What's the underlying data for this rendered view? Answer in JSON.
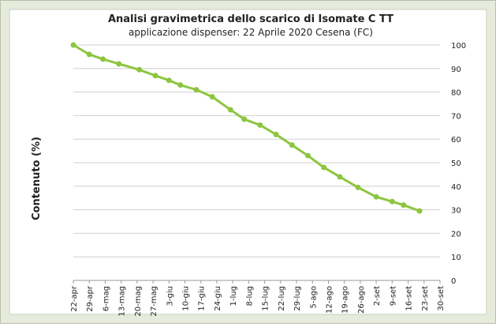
{
  "chart_data": {
    "type": "line",
    "title": "Analisi gravimetrica dello scarico di Isomate C TT",
    "subtitle": "applicazione dispenser: 22 Aprile 2020 Cesena (FC)",
    "y_label": "Contenuto (%)",
    "x": [
      0,
      7,
      13,
      20,
      29,
      36,
      42,
      47,
      54,
      61,
      69,
      75,
      82,
      89,
      96,
      103,
      110,
      117,
      125,
      133,
      140,
      145,
      152
    ],
    "series": [
      {
        "name": "Contenuto",
        "color": "#8cc63f",
        "values": [
          100,
          96,
          94,
          92,
          89.5,
          87,
          85,
          83,
          81,
          78,
          72.5,
          68.5,
          66,
          62,
          57.5,
          53,
          48,
          44,
          39.5,
          35.5,
          33.5,
          32,
          29.5
        ]
      }
    ],
    "xlim": [
      0,
      161
    ],
    "xticks": [
      {
        "value": 0,
        "label": "22-apr"
      },
      {
        "value": 7,
        "label": "29-apr"
      },
      {
        "value": 14,
        "label": "6-mag"
      },
      {
        "value": 21,
        "label": "13-mag"
      },
      {
        "value": 28,
        "label": "20-mag"
      },
      {
        "value": 35,
        "label": "27-mag"
      },
      {
        "value": 42,
        "label": "3-giu"
      },
      {
        "value": 49,
        "label": "10-giu"
      },
      {
        "value": 56,
        "label": "17-giu"
      },
      {
        "value": 63,
        "label": "24-giu"
      },
      {
        "value": 70,
        "label": "1-lug"
      },
      {
        "value": 77,
        "label": "8-lug"
      },
      {
        "value": 84,
        "label": "15-lug"
      },
      {
        "value": 91,
        "label": "22-lug"
      },
      {
        "value": 98,
        "label": "29-lug"
      },
      {
        "value": 105,
        "label": "5-ago"
      },
      {
        "value": 112,
        "label": "12-ago"
      },
      {
        "value": 119,
        "label": "19-ago"
      },
      {
        "value": 126,
        "label": "26-ago"
      },
      {
        "value": 133,
        "label": "2-set"
      },
      {
        "value": 140,
        "label": "9-set"
      },
      {
        "value": 147,
        "label": "16-set"
      },
      {
        "value": 154,
        "label": "23-set"
      },
      {
        "value": 161,
        "label": "30-set"
      }
    ],
    "ylim": [
      0,
      100
    ],
    "yticks": [
      0,
      10,
      20,
      30,
      40,
      50,
      60,
      70,
      80,
      90,
      100
    ],
    "grid": true,
    "y_axis_side": "right"
  }
}
